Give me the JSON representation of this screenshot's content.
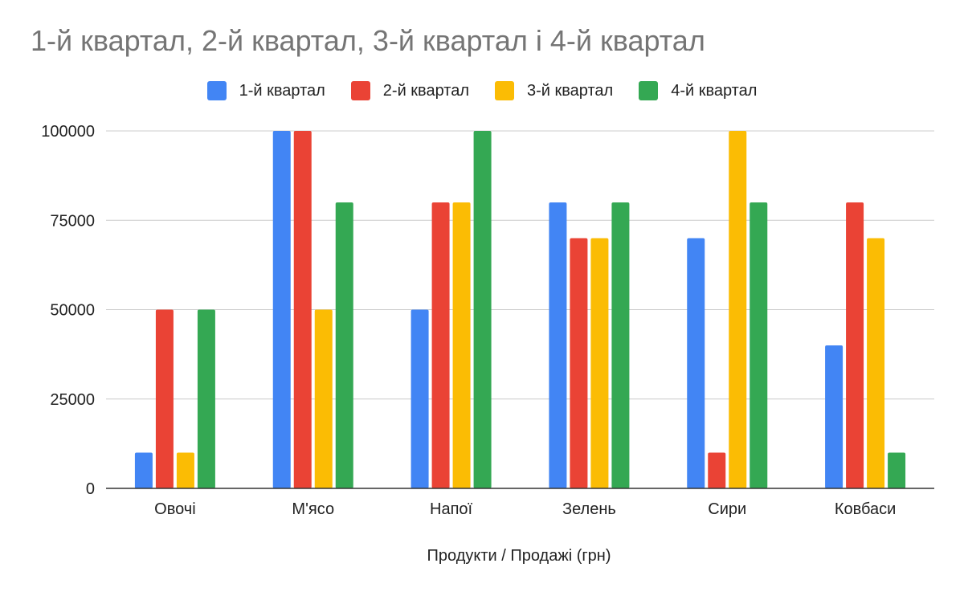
{
  "chart_data": {
    "type": "bar",
    "title": "1-й квартал, 2-й квартал, 3-й квартал і 4-й квартал",
    "xlabel": "Продукти / Продажі (грн)",
    "ylabel": "",
    "categories": [
      "Овочі",
      "М'ясо",
      "Напої",
      "Зелень",
      "Сири",
      "Ковбаси"
    ],
    "series": [
      {
        "name": "1-й квартал",
        "color": "#4285f4",
        "values": [
          10000,
          100000,
          50000,
          80000,
          70000,
          40000
        ]
      },
      {
        "name": "2-й квартал",
        "color": "#ea4335",
        "values": [
          50000,
          100000,
          80000,
          70000,
          10000,
          80000
        ]
      },
      {
        "name": "3-й квартал",
        "color": "#fbbc04",
        "values": [
          10000,
          50000,
          80000,
          70000,
          100000,
          70000
        ]
      },
      {
        "name": "4-й квартал",
        "color": "#34a853",
        "values": [
          50000,
          80000,
          100000,
          80000,
          80000,
          10000
        ]
      }
    ],
    "ylim": [
      0,
      100000
    ],
    "yticks": [
      "0",
      "25000",
      "50000",
      "75000",
      "100000"
    ],
    "ytick_values": [
      0,
      25000,
      50000,
      75000,
      100000
    ],
    "grid": true,
    "legend_position": "top"
  }
}
